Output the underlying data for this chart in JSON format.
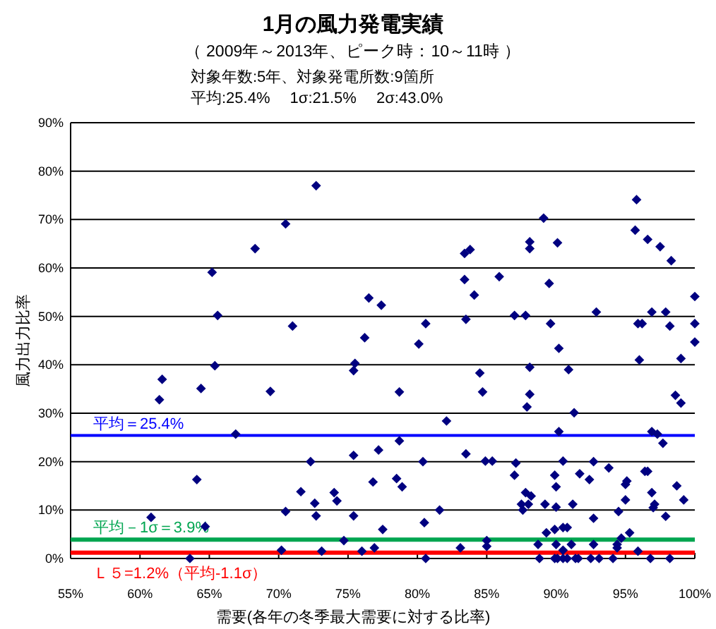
{
  "chart_data": {
    "type": "scatter",
    "title": "1月の風力発電実績",
    "subtitle": "（ 2009年～2013年、ピーク時：10～11時 ）",
    "annotations": [
      "対象年数:5年、対象発電所数:9箇所",
      "平均:25.4%　 1σ:21.5%　 2σ:43.0%"
    ],
    "xlabel": "需要(各年の冬季最大需要に対する比率)",
    "ylabel": "風力出力比率",
    "xlim": [
      55,
      100
    ],
    "ylim": [
      0,
      90
    ],
    "xticks": [
      {
        "value": 55,
        "label": "55%"
      },
      {
        "value": 60,
        "label": "60%"
      },
      {
        "value": 65,
        "label": "65%"
      },
      {
        "value": 70,
        "label": "70%"
      },
      {
        "value": 75,
        "label": "75%"
      },
      {
        "value": 80,
        "label": "80%"
      },
      {
        "value": 85,
        "label": "85%"
      },
      {
        "value": 90,
        "label": "90%"
      },
      {
        "value": 95,
        "label": "95%"
      },
      {
        "value": 100,
        "label": "100%"
      }
    ],
    "yticks": [
      {
        "value": 0,
        "label": "0%"
      },
      {
        "value": 10,
        "label": "10%"
      },
      {
        "value": 20,
        "label": "20%"
      },
      {
        "value": 30,
        "label": "30%"
      },
      {
        "value": 40,
        "label": "40%"
      },
      {
        "value": 50,
        "label": "50%"
      },
      {
        "value": 60,
        "label": "60%"
      },
      {
        "value": 70,
        "label": "70%"
      },
      {
        "value": 80,
        "label": "80%"
      },
      {
        "value": 90,
        "label": "90%"
      }
    ],
    "grid": "y",
    "marker": "diamond",
    "ref_lines": [
      {
        "axis": "y",
        "value": 25.4,
        "label": "平均＝25.4%",
        "color": "#0000ff"
      },
      {
        "axis": "y",
        "value": 3.9,
        "label": "平均－1σ＝3.9%",
        "color": "#00a550"
      },
      {
        "axis": "y",
        "value": 1.2,
        "label": "Ｌ５=1.2%（平均-1.1σ）",
        "color": "#ff0000"
      }
    ],
    "series": [
      {
        "color": "#000080",
        "x": [
          70.5,
          68.3,
          65.2,
          65.6,
          65.4,
          61.6,
          61.4,
          64.4,
          69.4,
          66.9,
          64.1,
          60.8,
          64.7,
          70.5,
          63.6,
          70.2,
          72.7,
          71.0,
          76.5,
          77.4,
          76.2,
          75.5,
          75.4,
          78.7,
          80.1,
          80.6,
          83.4,
          83.8,
          83.4,
          84.1,
          83.5,
          84.5,
          84.7,
          82.1,
          78.7,
          75.4,
          77.2,
          72.3,
          80.4,
          83.5,
          71.6,
          74.0,
          74.2,
          72.6,
          72.7,
          75.4,
          76.8,
          78.5,
          78.9,
          81.6,
          80.5,
          77.5,
          74.7,
          76.9,
          73.1,
          76.0,
          83.1,
          80.6,
          95.8,
          89.1,
          95.7,
          96.6,
          97.5,
          98.3,
          88.1,
          88.1,
          90.1,
          85.9,
          89.5,
          87.0,
          87.8,
          89.6,
          92.9,
          95.9,
          96.2,
          96.9,
          97.9,
          98.2,
          100,
          100,
          100,
          90.2,
          90.9,
          88.1,
          96.0,
          99.0,
          88.1,
          87.9,
          98.6,
          99.0,
          91.3,
          90.2,
          96.9,
          97.3,
          97.7,
          84.9,
          85.4,
          87.1,
          87.0,
          90.5,
          92.7,
          93.8,
          89.9,
          91.7,
          92.4,
          90.0,
          96.4,
          96.6,
          95.0,
          95.1,
          95.0,
          98.7,
          99.2,
          96.9,
          97.1,
          97.0,
          97.9,
          87.8,
          88.2,
          87.5,
          88.0,
          87.6,
          89.2,
          90.0,
          91.2,
          94.5,
          92.7,
          89.9,
          90.5,
          90.8,
          89.3,
          95.3,
          94.7,
          85.0,
          85.0,
          88.7,
          90.0,
          91.1,
          92.7,
          94.4,
          94.4,
          95.9,
          90.5,
          88.8,
          89.9,
          90.1,
          90.5,
          90.8,
          91.4,
          91.6,
          92.5,
          93.1,
          94.1,
          96.8,
          98.2
        ],
        "values": [
          69.1,
          64.0,
          59.1,
          50.2,
          39.8,
          37.0,
          32.8,
          35.1,
          34.5,
          25.7,
          16.3,
          8.5,
          6.6,
          9.7,
          0,
          1.7,
          77.0,
          48.0,
          53.8,
          52.3,
          45.6,
          40.3,
          38.8,
          34.4,
          44.3,
          48.5,
          63.0,
          63.8,
          57.6,
          54.4,
          49.4,
          38.3,
          34.4,
          28.4,
          24.3,
          21.3,
          22.4,
          20.0,
          20.0,
          21.6,
          13.8,
          13.6,
          11.9,
          11.4,
          8.8,
          8.8,
          15.8,
          16.5,
          14.8,
          10.0,
          7.4,
          6.0,
          3.7,
          2.2,
          1.5,
          1.5,
          2.2,
          0,
          74.1,
          70.3,
          67.8,
          65.9,
          64.4,
          61.5,
          65.4,
          64.0,
          65.2,
          58.2,
          56.8,
          50.2,
          50.2,
          48.5,
          50.9,
          48.5,
          48.5,
          50.9,
          50.9,
          48.0,
          54.1,
          48.5,
          44.7,
          43.4,
          39.0,
          39.5,
          41.0,
          41.3,
          33.9,
          31.3,
          33.7,
          32.1,
          30.1,
          26.2,
          26.2,
          25.7,
          23.8,
          20.1,
          20.1,
          19.7,
          17.2,
          20.1,
          20.0,
          18.7,
          17.2,
          17.5,
          16.3,
          14.8,
          18.0,
          18.0,
          15.3,
          16.0,
          12.1,
          15.0,
          12.1,
          13.6,
          11.2,
          10.5,
          8.7,
          13.6,
          12.9,
          11.2,
          11.2,
          10.0,
          11.2,
          10.6,
          11.2,
          9.7,
          8.3,
          6.0,
          6.4,
          6.4,
          5.3,
          5.3,
          4.2,
          3.7,
          2.5,
          2.9,
          2.9,
          2.9,
          2.9,
          2.9,
          2.2,
          1.5,
          1.7,
          0,
          0,
          0,
          0,
          0,
          0,
          0,
          0,
          0,
          0,
          0,
          0
        ]
      }
    ]
  }
}
